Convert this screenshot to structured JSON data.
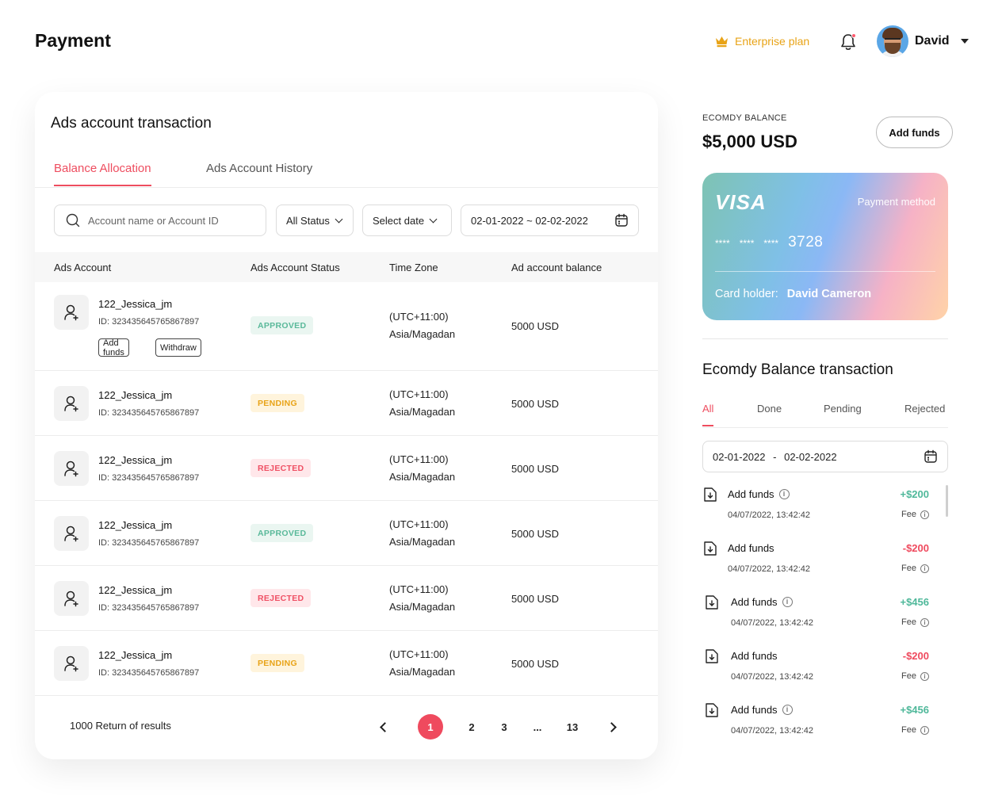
{
  "header": {
    "title": "Payment",
    "plan_label": "Enterprise plan",
    "user_name": "David",
    "plan_color": "#e8a317"
  },
  "ads_transaction": {
    "title": "Ads account transaction",
    "tabs": [
      {
        "label": "Balance Allocation",
        "active": true
      },
      {
        "label": "Ads Account History",
        "active": false
      }
    ],
    "search_placeholder": "Account name or Account ID",
    "status_filter": "All Status",
    "date_filter": "Select date",
    "date_range": "02-01-2022 ~ 02-02-2022",
    "columns": [
      "Ads Account",
      "Ads Account Status",
      "Time Zone",
      "Ad account balance"
    ],
    "action_labels": {
      "add_funds": "Add funds",
      "withdraw": "Withdraw"
    },
    "rows": [
      {
        "name": "122_Jessica_jm",
        "id": "ID: 323435645765867897",
        "status": "APPROVED",
        "tz_offset": "(UTC+11:00)",
        "tz_name": "Asia/Magadan",
        "balance": "5000 USD"
      },
      {
        "name": "122_Jessica_jm",
        "id": "ID: 323435645765867897",
        "status": "PENDING",
        "tz_offset": "(UTC+11:00)",
        "tz_name": "Asia/Magadan",
        "balance": "5000 USD"
      },
      {
        "name": "122_Jessica_jm",
        "id": "ID: 323435645765867897",
        "status": "REJECTED",
        "tz_offset": "(UTC+11:00)",
        "tz_name": "Asia/Magadan",
        "balance": "5000 USD"
      },
      {
        "name": "122_Jessica_jm",
        "id": "ID: 323435645765867897",
        "status": "APPROVED",
        "tz_offset": "(UTC+11:00)",
        "tz_name": "Asia/Magadan",
        "balance": "5000 USD"
      },
      {
        "name": "122_Jessica_jm",
        "id": "ID: 323435645765867897",
        "status": "REJECTED",
        "tz_offset": "(UTC+11:00)",
        "tz_name": "Asia/Magadan",
        "balance": "5000 USD"
      },
      {
        "name": "122_Jessica_jm",
        "id": "ID: 323435645765867897",
        "status": "PENDING",
        "tz_offset": "(UTC+11:00)",
        "tz_name": "Asia/Magadan",
        "balance": "5000 USD"
      }
    ],
    "results_text": "1000 Return of results",
    "pagination": {
      "pages": [
        "1",
        "2",
        "3",
        "...",
        "13"
      ],
      "current": "1"
    }
  },
  "balance": {
    "label": "ECOMDY BALANCE",
    "amount": "$5,000 USD",
    "add_funds_label": "Add funds"
  },
  "card": {
    "brand": "VISA",
    "payment_method_label": "Payment method",
    "masked_groups": [
      "****",
      "****",
      "****"
    ],
    "last4": "3728",
    "holder_label": "Card holder:",
    "holder_name": "David Cameron"
  },
  "balance_transactions": {
    "title": "Ecomdy Balance transaction",
    "tabs": [
      {
        "label": "All",
        "active": true
      },
      {
        "label": "Done",
        "active": false
      },
      {
        "label": "Pending",
        "active": false
      },
      {
        "label": "Rejected",
        "active": false
      }
    ],
    "date_from": "02-01-2022",
    "date_separator": "-",
    "date_to": "02-02-2022",
    "fee_label": "Fee",
    "items": [
      {
        "title": "Add funds",
        "info": true,
        "date": "04/07/2022, 13:42:42",
        "amount": "+$200",
        "sign": "plus"
      },
      {
        "title": "Add funds",
        "info": false,
        "date": "04/07/2022, 13:42:42",
        "amount": "-$200",
        "sign": "minus"
      },
      {
        "title": "Add funds",
        "info": true,
        "date": "04/07/2022, 13:42:42",
        "amount": "+$456",
        "sign": "plus"
      },
      {
        "title": "Add funds",
        "info": false,
        "date": "04/07/2022, 13:42:42",
        "amount": "-$200",
        "sign": "minus"
      },
      {
        "title": "Add funds",
        "info": true,
        "date": "04/07/2022, 13:42:42",
        "amount": "+$456",
        "sign": "plus"
      }
    ]
  },
  "colors": {
    "accent": "#ef4a5e",
    "approved": "#5ab99a",
    "pending": "#e8a317",
    "rejected": "#ef5064"
  },
  "icons": [
    "crown-icon",
    "bell-icon",
    "search-icon",
    "calendar-icon",
    "user-icon",
    "download-doc-icon",
    "info-icon",
    "chevron-left-icon",
    "chevron-right-icon"
  ]
}
